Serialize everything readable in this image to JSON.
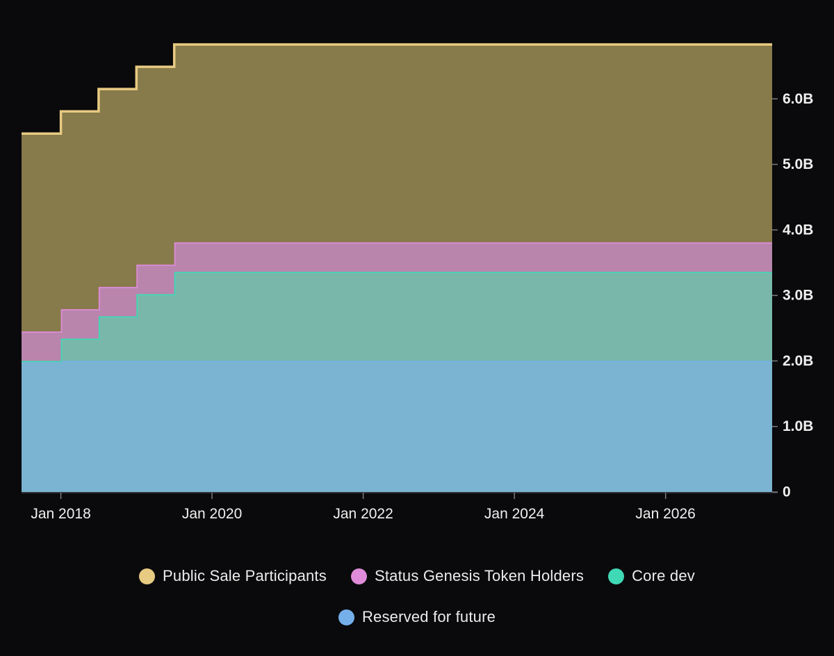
{
  "page": {
    "background": "#0a0a0c",
    "text_color": "#f0f0f0",
    "axis_tick_color": "#7a7d82",
    "axis_line_color": "#3c3e42"
  },
  "chart_data": {
    "type": "area",
    "variant": "stacked-step-area",
    "title": "",
    "xlabel": "",
    "ylabel": "",
    "unit": "B (billions of tokens)",
    "grid": false,
    "legend_position": "bottom",
    "xlim": [
      2017.48,
      2027.41
    ],
    "ylim": [
      0,
      7.18
    ],
    "x_breakpoints": [
      2017.48,
      2018.0,
      2018.5,
      2019.0,
      2019.5,
      2027.41
    ],
    "series": [
      {
        "name": "Reserved for future",
        "color": "#75afe9",
        "fill": "#7ab4d2",
        "values": [
          2.0,
          2.0,
          2.0,
          2.0,
          2.0
        ]
      },
      {
        "name": "Core dev",
        "color": "#3fd9b5",
        "fill": "#79b7aa",
        "values": [
          0,
          0.34,
          0.68,
          1.02,
          1.36
        ]
      },
      {
        "name": "Status Genesis Token Holders",
        "color": "#e08cda",
        "fill": "#b985ad",
        "values": [
          0.45,
          0.45,
          0.45,
          0.45,
          0.45
        ]
      },
      {
        "name": "Public Sale Participants",
        "color": "#e8cb82",
        "fill": "#877a4b",
        "values": [
          3.02,
          3.02,
          3.02,
          3.02,
          3.02
        ]
      }
    ],
    "stack_order_note": "series listed bottom-to-top; cumulative top reaches ~6.83B after Jul 2019",
    "y_ticks": [
      {
        "v": 0,
        "label": "0"
      },
      {
        "v": 1,
        "label": "1.0B"
      },
      {
        "v": 2,
        "label": "2.0B"
      },
      {
        "v": 3,
        "label": "3.0B"
      },
      {
        "v": 4,
        "label": "4.0B"
      },
      {
        "v": 5,
        "label": "5.0B"
      },
      {
        "v": 6,
        "label": "6.0B"
      }
    ],
    "x_ticks": [
      {
        "v": 2018,
        "label": "Jan 2018"
      },
      {
        "v": 2020,
        "label": "Jan 2020"
      },
      {
        "v": 2022,
        "label": "Jan 2022"
      },
      {
        "v": 2024,
        "label": "Jan 2024"
      },
      {
        "v": 2026,
        "label": "Jan 2026"
      }
    ]
  },
  "legend": {
    "rows": [
      [
        "Public Sale Participants",
        "Status Genesis Token Holders",
        "Core dev"
      ],
      [
        "Reserved for future"
      ]
    ]
  }
}
